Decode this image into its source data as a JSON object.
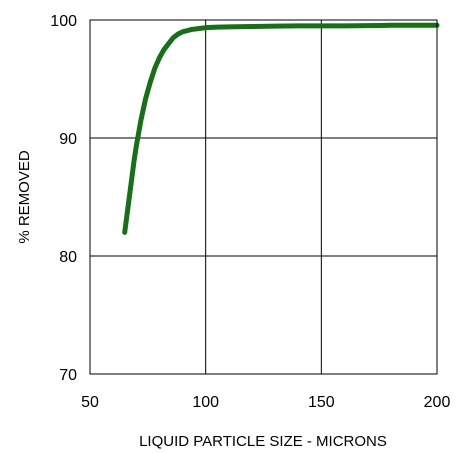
{
  "chart_data": {
    "type": "line",
    "title": "",
    "xlabel": "LIQUID PARTICLE SIZE - MICRONS",
    "ylabel": "% REMOVED",
    "xlim": [
      50,
      200
    ],
    "ylim": [
      70,
      100
    ],
    "x_ticks": [
      50,
      100,
      150,
      200
    ],
    "y_ticks": [
      70,
      80,
      90,
      100
    ],
    "grid": true,
    "legend": "none",
    "series": [
      {
        "color": "#167016",
        "x": [
          65,
          66,
          67,
          68,
          69,
          70,
          72,
          74,
          76,
          78,
          80,
          82,
          84,
          86,
          88,
          90,
          92,
          94,
          96,
          98,
          100,
          105,
          110,
          120,
          130,
          140,
          150,
          160,
          170,
          180,
          190,
          200
        ],
        "y": [
          82.0,
          83.5,
          85.0,
          86.5,
          88.0,
          89.3,
          91.5,
          93.3,
          94.7,
          95.9,
          96.8,
          97.5,
          98.0,
          98.5,
          98.8,
          99.0,
          99.1,
          99.2,
          99.25,
          99.3,
          99.35,
          99.4,
          99.42,
          99.45,
          99.48,
          99.5,
          99.5,
          99.5,
          99.52,
          99.55,
          99.55,
          99.55
        ]
      }
    ]
  }
}
